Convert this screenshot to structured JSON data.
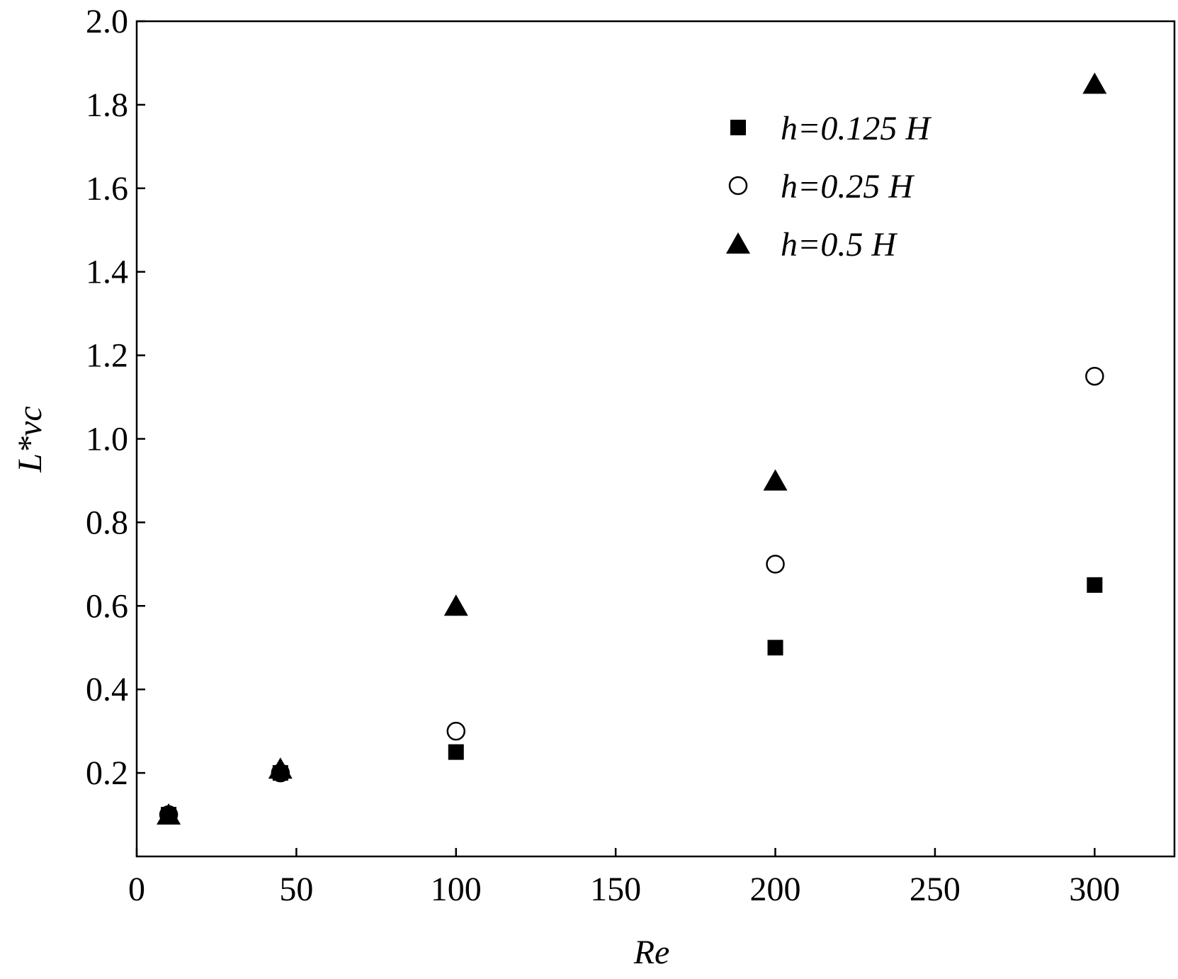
{
  "chart_data": {
    "type": "scatter",
    "x_label": "Re",
    "y_label": "L*vc",
    "xlim": [
      0,
      325
    ],
    "ylim": [
      0,
      2
    ],
    "xticks": [
      0,
      50,
      100,
      150,
      200,
      250,
      300
    ],
    "yticks": [
      0.2,
      0.4,
      0.6,
      0.8,
      {
        "value": 1,
        "label": "1.0"
      },
      1.2,
      1.4,
      1.6,
      1.8,
      {
        "value": 2,
        "label": "2.0"
      }
    ],
    "legend": "upper right",
    "series": [
      {
        "name": "h=0.125 H",
        "marker": "square",
        "color": "#000000",
        "x": [
          10,
          45,
          100,
          200,
          300
        ],
        "values": [
          0.1,
          0.2,
          0.25,
          0.5,
          0.65
        ]
      },
      {
        "name": "h=0.25 H",
        "marker": "circle",
        "color": "#000000",
        "x": [
          10,
          45,
          100,
          200,
          300
        ],
        "values": [
          0.1,
          0.2,
          0.3,
          0.7,
          1.15
        ]
      },
      {
        "name": "h=0.5 H",
        "marker": "triangle",
        "color": "#000000",
        "x": [
          10,
          45,
          100,
          200,
          300
        ],
        "values": [
          0.1,
          0.21,
          0.6,
          0.9,
          1.85
        ]
      }
    ]
  }
}
